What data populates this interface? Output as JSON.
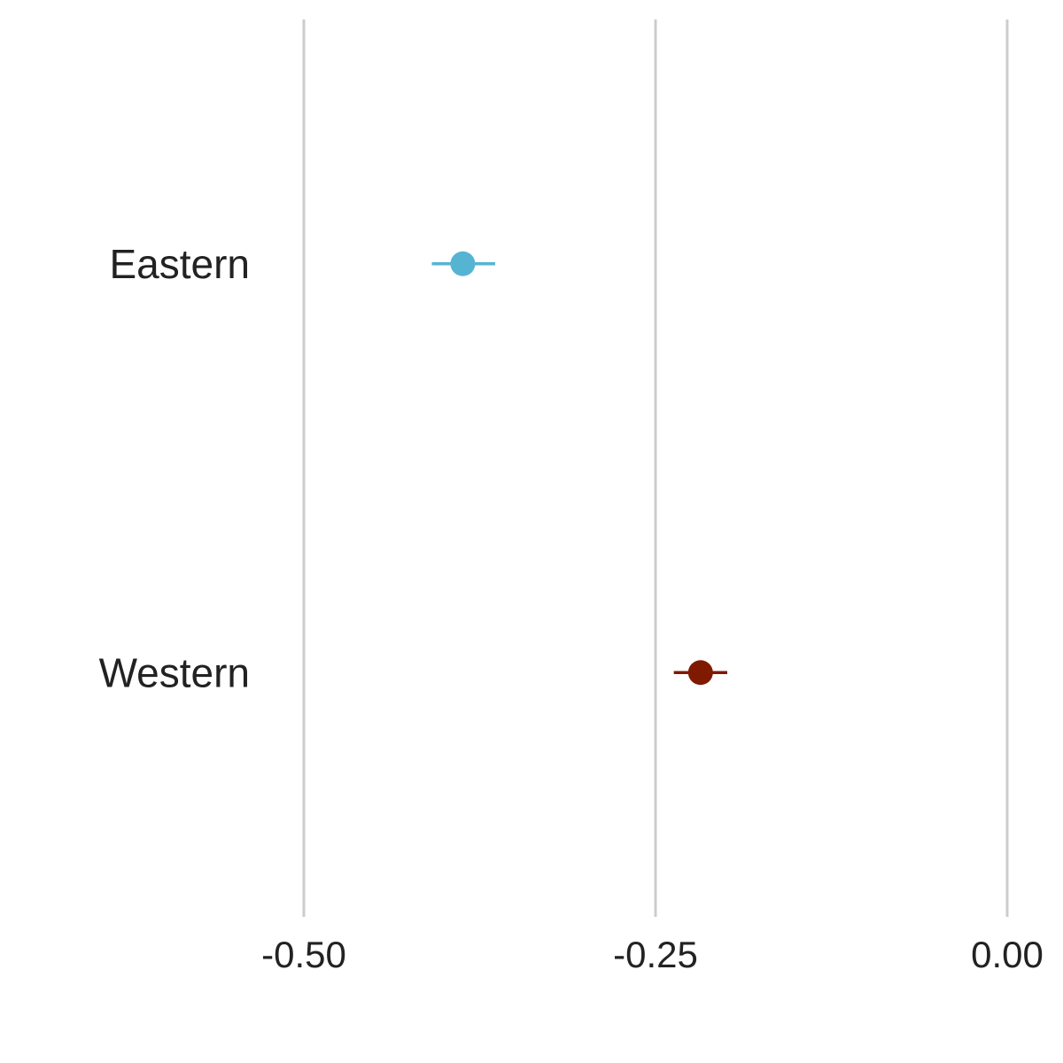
{
  "chart_data": {
    "type": "scatter",
    "orientation": "horizontal",
    "title": "",
    "xlabel": "",
    "ylabel": "",
    "xlim": [
      -0.6,
      0.0
    ],
    "x_ticks": [
      -0.5,
      -0.25,
      0.0
    ],
    "x_tick_labels": [
      "-0.50",
      "-0.25",
      "0.00"
    ],
    "grid": "vertical",
    "legend": "none",
    "categories": [
      "Eastern",
      "Western"
    ],
    "points": [
      {
        "category": "Eastern",
        "value": -0.387,
        "lower": -0.409,
        "upper": -0.364,
        "color": "#56b4d3"
      },
      {
        "category": "Western",
        "value": -0.218,
        "lower": -0.237,
        "upper": -0.199,
        "color": "#7f1a00"
      }
    ]
  }
}
